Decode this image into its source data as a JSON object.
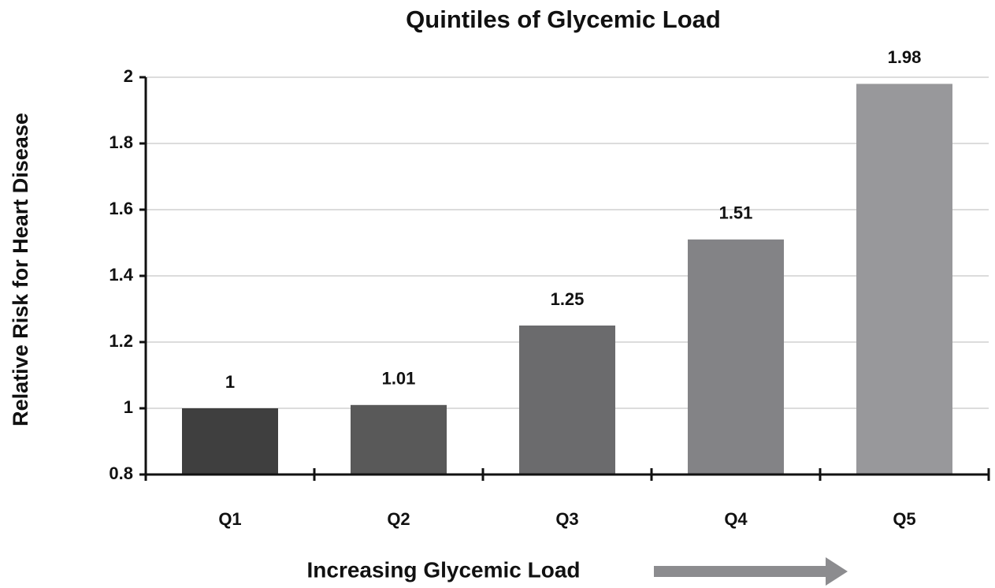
{
  "chart_data": {
    "type": "bar",
    "title": "Quintiles of Glycemic Load",
    "y_label": "Relative Risk for Heart Disease",
    "x_label": "Increasing Glycemic Load",
    "categories": [
      "Q1",
      "Q2",
      "Q3",
      "Q4",
      "Q5"
    ],
    "values": [
      1,
      1.01,
      1.25,
      1.51,
      1.98
    ],
    "colors": [
      "#3f3f3f",
      "#595959",
      "#6b6b6d",
      "#838386",
      "#98989b"
    ],
    "ylim": [
      0.8,
      2
    ],
    "yticks": [
      0.8,
      1,
      1.2,
      1.4,
      1.6,
      1.8,
      2
    ],
    "grid": true
  }
}
